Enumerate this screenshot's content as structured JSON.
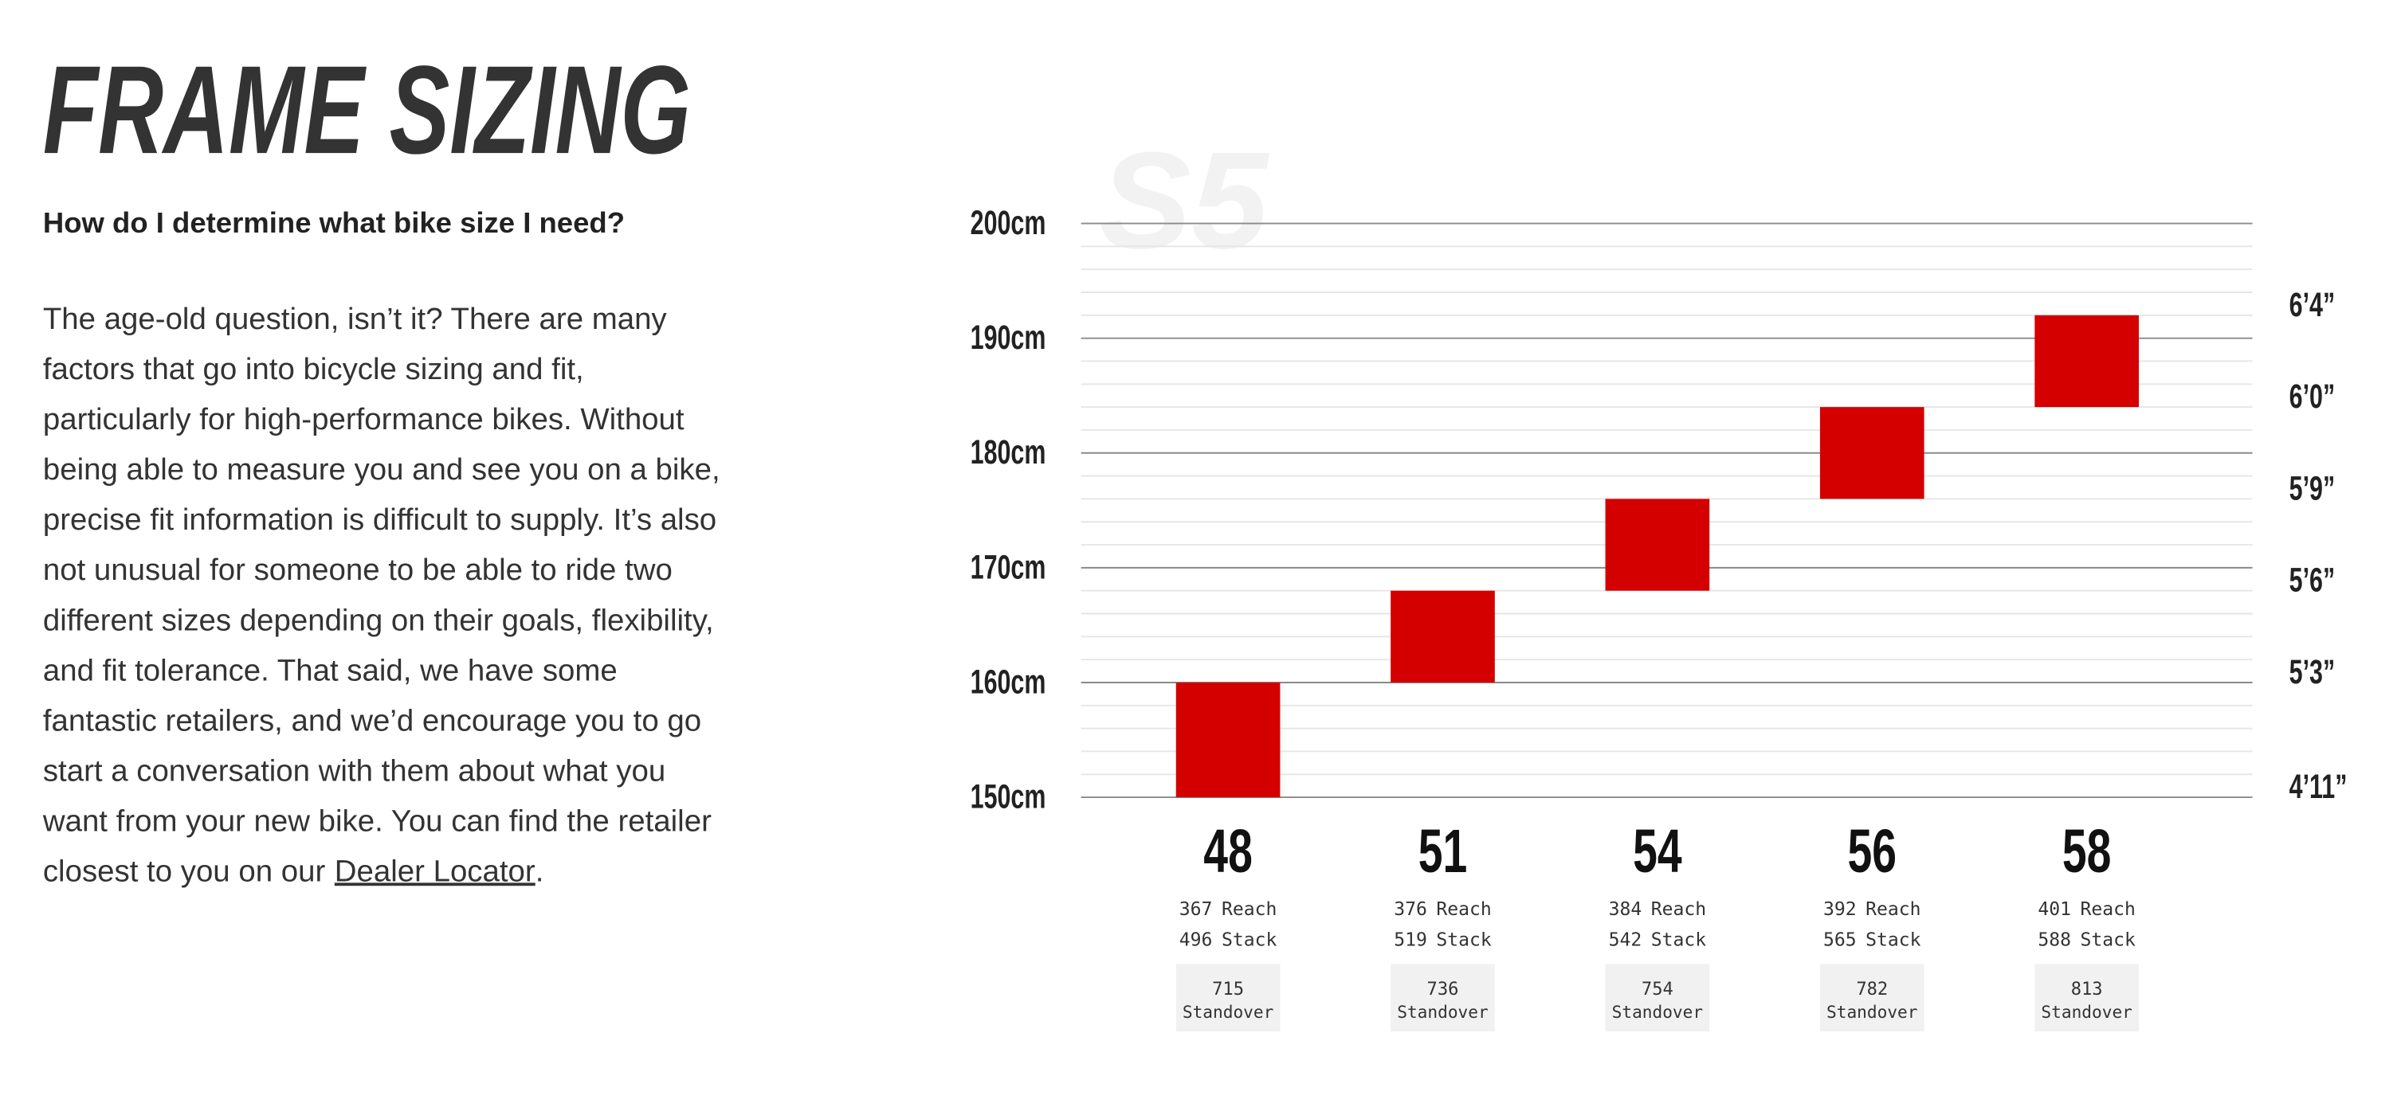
{
  "page": {
    "title": "FRAME SIZING",
    "question": "How do I determine what bike size I need?",
    "lines": [
      "The age-old question, isn’t it? There are many",
      "factors that go into bicycle sizing and fit,",
      "particularly for high-performance bikes. Without",
      "being able to measure you and see you on a bike,",
      "precise fit information is difficult to supply. It’s also",
      "not unusual for someone to be able to ride two",
      "different sizes depending on their goals, flexibility,",
      "and fit tolerance. That said, we have some",
      "fantastic retailers, and we’d encourage you to go",
      "start a conversation with them about what you",
      "want from your new bike. You can find the retailer",
      "closest to you on our"
    ],
    "link": "Dealer Locator",
    "link_suffix": "."
  },
  "chart_data": {
    "type": "range-bar",
    "watermark": "S5",
    "categories": [
      "48",
      "51",
      "54",
      "56",
      "58"
    ],
    "low": [
      150,
      160,
      168,
      176,
      184
    ],
    "high": [
      160,
      168,
      176,
      184,
      192
    ],
    "color": "#d40000",
    "ylim": [
      150,
      200
    ],
    "yticks": [
      {
        "value": 150,
        "label": "150cm"
      },
      {
        "value": 160,
        "label": "160cm"
      },
      {
        "value": 170,
        "label": "170cm"
      },
      {
        "value": 180,
        "label": "180cm"
      },
      {
        "value": 190,
        "label": "190cm"
      },
      {
        "value": 200,
        "label": "200cm"
      }
    ],
    "minor_yticks": [
      152,
      154,
      156,
      158,
      162,
      164,
      166,
      168,
      172,
      174,
      176,
      178,
      182,
      184,
      186,
      188,
      192,
      194,
      196,
      198
    ],
    "grid": true,
    "y2lim": [
      150,
      200
    ],
    "y2ticks": [
      {
        "value": 151,
        "label": "4’11”"
      },
      {
        "value": 161,
        "label": "5’3”"
      },
      {
        "value": 169,
        "label": "5’6”"
      },
      {
        "value": 177,
        "label": "5’9”"
      },
      {
        "value": 185,
        "label": "6’0”"
      },
      {
        "value": 193,
        "label": "6’4”"
      }
    ],
    "reach": [
      367,
      376,
      384,
      392,
      401
    ],
    "reach_label": "Reach",
    "stack": [
      496,
      519,
      542,
      565,
      588
    ],
    "stack_label": "Stack",
    "standover": [
      715,
      736,
      754,
      782,
      813
    ],
    "standover_label": "Standover"
  }
}
